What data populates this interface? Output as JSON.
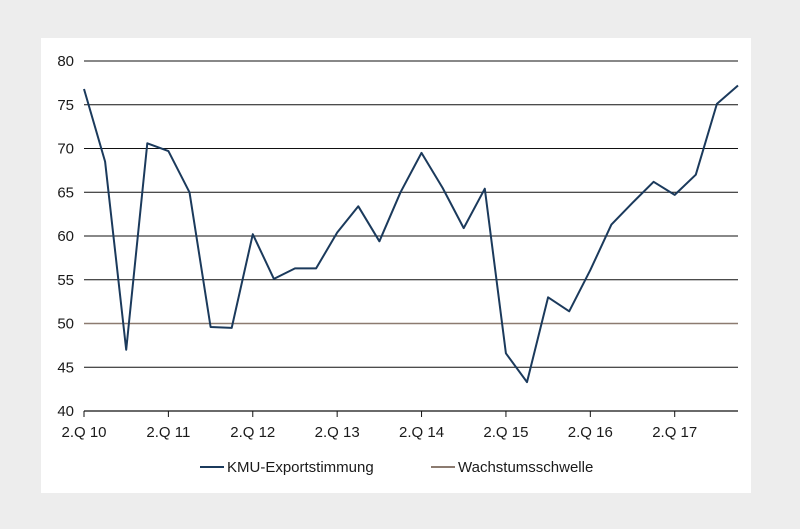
{
  "chart_data": {
    "type": "line",
    "title": "",
    "xlabel": "",
    "ylabel": "",
    "ylim": [
      40,
      80
    ],
    "yticks": [
      40,
      45,
      50,
      55,
      60,
      65,
      70,
      75,
      80
    ],
    "grid": "horizontal",
    "legend_position": "bottom",
    "x_tick_labels": [
      "2.Q 10",
      "2.Q 11",
      "2.Q 12",
      "2.Q 13",
      "2.Q 14",
      "2.Q 15",
      "2.Q 16",
      "2.Q 17"
    ],
    "x": [
      "2.Q 10",
      "3.Q 10",
      "4.Q 10",
      "1.Q 11",
      "2.Q 11",
      "3.Q 11",
      "4.Q 11",
      "1.Q 12",
      "2.Q 12",
      "3.Q 12",
      "4.Q 12",
      "1.Q 13",
      "2.Q 13",
      "3.Q 13",
      "4.Q 13",
      "1.Q 14",
      "2.Q 14",
      "3.Q 14",
      "4.Q 14",
      "1.Q 15",
      "2.Q 15",
      "3.Q 15",
      "4.Q 15",
      "1.Q 16",
      "2.Q 16",
      "3.Q 16",
      "4.Q 16",
      "1.Q 17",
      "2.Q 17",
      "3.Q 17",
      "4.Q 17",
      "1.Q 18"
    ],
    "series": [
      {
        "name": "KMU-Exportstimmung",
        "color": "#1b3a5c",
        "values": [
          76.8,
          68.5,
          47.0,
          70.6,
          69.7,
          65.0,
          49.6,
          49.5,
          60.2,
          55.1,
          56.3,
          56.3,
          60.4,
          63.4,
          59.4,
          65.0,
          69.5,
          65.5,
          60.9,
          65.4,
          46.6,
          43.3,
          53.0,
          51.4,
          56.1,
          61.3,
          63.8,
          66.2,
          64.7,
          67.0,
          75.1,
          77.2
        ]
      },
      {
        "name": "Wachstumsschwelle",
        "color": "#8c7b70",
        "values": [
          50,
          50,
          50,
          50,
          50,
          50,
          50,
          50,
          50,
          50,
          50,
          50,
          50,
          50,
          50,
          50,
          50,
          50,
          50,
          50,
          50,
          50,
          50,
          50,
          50,
          50,
          50,
          50,
          50,
          50,
          50,
          50
        ]
      }
    ]
  }
}
